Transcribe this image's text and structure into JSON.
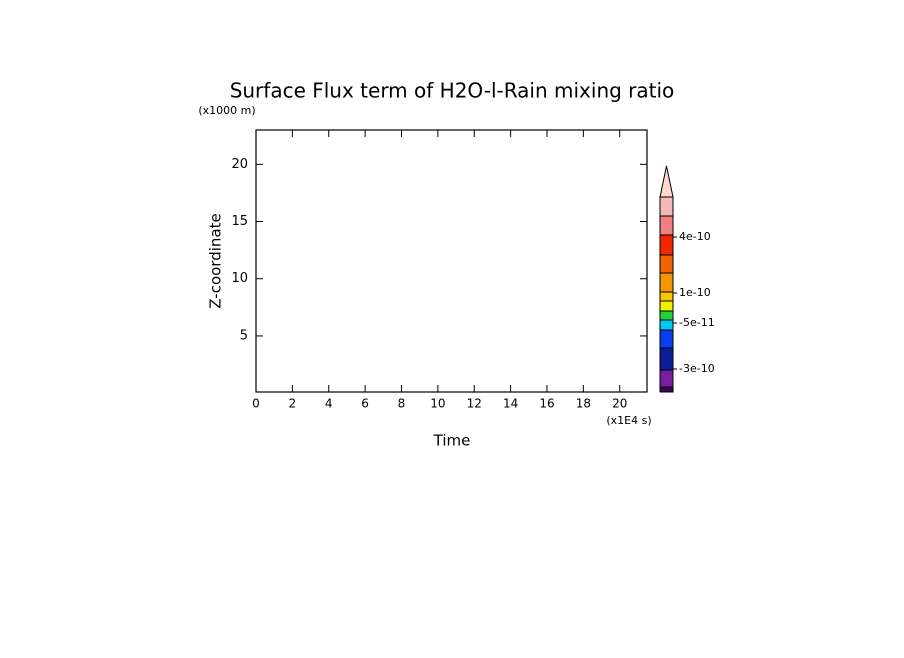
{
  "chart_data": {
    "type": "contour",
    "title": "Surface Flux term of H2O-l-Rain mixing ratio",
    "x_label": "Time",
    "x_unit": "(x1E4 s)",
    "y_label": "Z-coordinate",
    "y_unit": "(x1000 m)",
    "xlim": [
      0,
      21.5
    ],
    "xticks": [
      0,
      2,
      4,
      6,
      8,
      10,
      12,
      14,
      16,
      18,
      20
    ],
    "ylim": [
      0.1,
      23
    ],
    "yticks": [
      5,
      10,
      15,
      20
    ],
    "colorbar": {
      "colors": [
        "#3a0850",
        "#7a1ea0",
        "#0c1e96",
        "#0a3cf0",
        "#00c8f0",
        "#22d040",
        "#f5f000",
        "#f5c800",
        "#f59600",
        "#f06400",
        "#f02800",
        "#f08080",
        "#f5b8b8",
        "#fcd8d0"
      ],
      "labels": [
        "4e-10",
        "1e-10",
        "-5e-11",
        "-3e-10"
      ]
    }
  }
}
